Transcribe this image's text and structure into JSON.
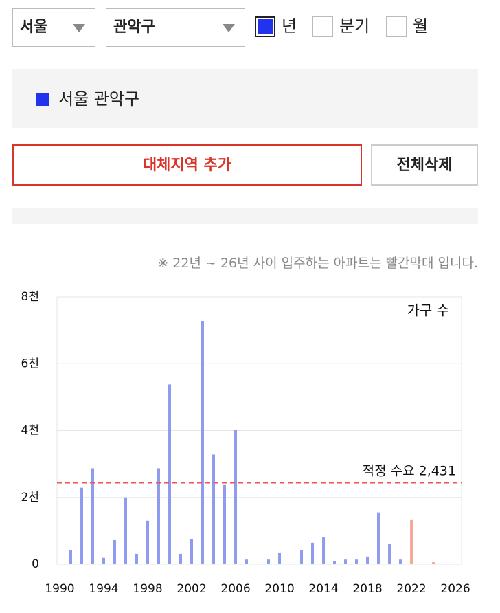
{
  "filters": {
    "city": "서울",
    "district": "관악구",
    "periods": [
      {
        "label": "년",
        "checked": true
      },
      {
        "label": "분기",
        "checked": false
      },
      {
        "label": "월",
        "checked": false
      }
    ]
  },
  "selection": {
    "region": "서울 관악구",
    "color": "#2233ee"
  },
  "buttons": {
    "add": "대체지역 추가",
    "clear": "전체삭제"
  },
  "note": "※ 22년 ~ 26년 사이 입주하는 아파트는 빨간막대 입니다.",
  "chart_data": {
    "type": "bar",
    "annotation": "가구 수",
    "x": [
      1991,
      1992,
      1993,
      1994,
      1995,
      1996,
      1997,
      1998,
      1999,
      2000,
      2001,
      2002,
      2003,
      2004,
      2005,
      2006,
      2007,
      2009,
      2010,
      2012,
      2013,
      2014,
      2015,
      2016,
      2017,
      2018,
      2019,
      2020,
      2021,
      2022,
      2024
    ],
    "series": [
      {
        "color": "#8e9bef",
        "values": [
          430,
          2290,
          2870,
          190,
          720,
          2000,
          310,
          1300,
          2870,
          5380,
          310,
          760,
          7280,
          3280,
          2370,
          4020,
          140,
          140,
          350,
          430,
          640,
          800,
          100,
          140,
          140,
          230,
          1550,
          600,
          140,
          null,
          null
        ]
      },
      {
        "color": "#f5a898",
        "values": [
          null,
          null,
          null,
          null,
          null,
          null,
          null,
          null,
          null,
          null,
          null,
          null,
          null,
          null,
          null,
          null,
          null,
          null,
          null,
          null,
          null,
          null,
          null,
          null,
          null,
          null,
          null,
          null,
          null,
          1340,
          60
        ]
      }
    ],
    "reference": {
      "value": 2431,
      "label": "적정 수요 2,431",
      "color": "#ee5555"
    },
    "xlim": [
      1989.75,
      2026.56
    ],
    "xticks": [
      1990,
      1994,
      1998,
      2002,
      2006,
      2010,
      2014,
      2018,
      2022,
      2026
    ],
    "ylim": [
      0,
      8000
    ],
    "yticks": [
      0,
      {
        "value": 2000,
        "label": "2천"
      },
      {
        "value": 4000,
        "label": "4천"
      },
      {
        "value": 6000,
        "label": "6천"
      },
      {
        "value": 8000,
        "label": "8천"
      }
    ],
    "grid": true
  }
}
